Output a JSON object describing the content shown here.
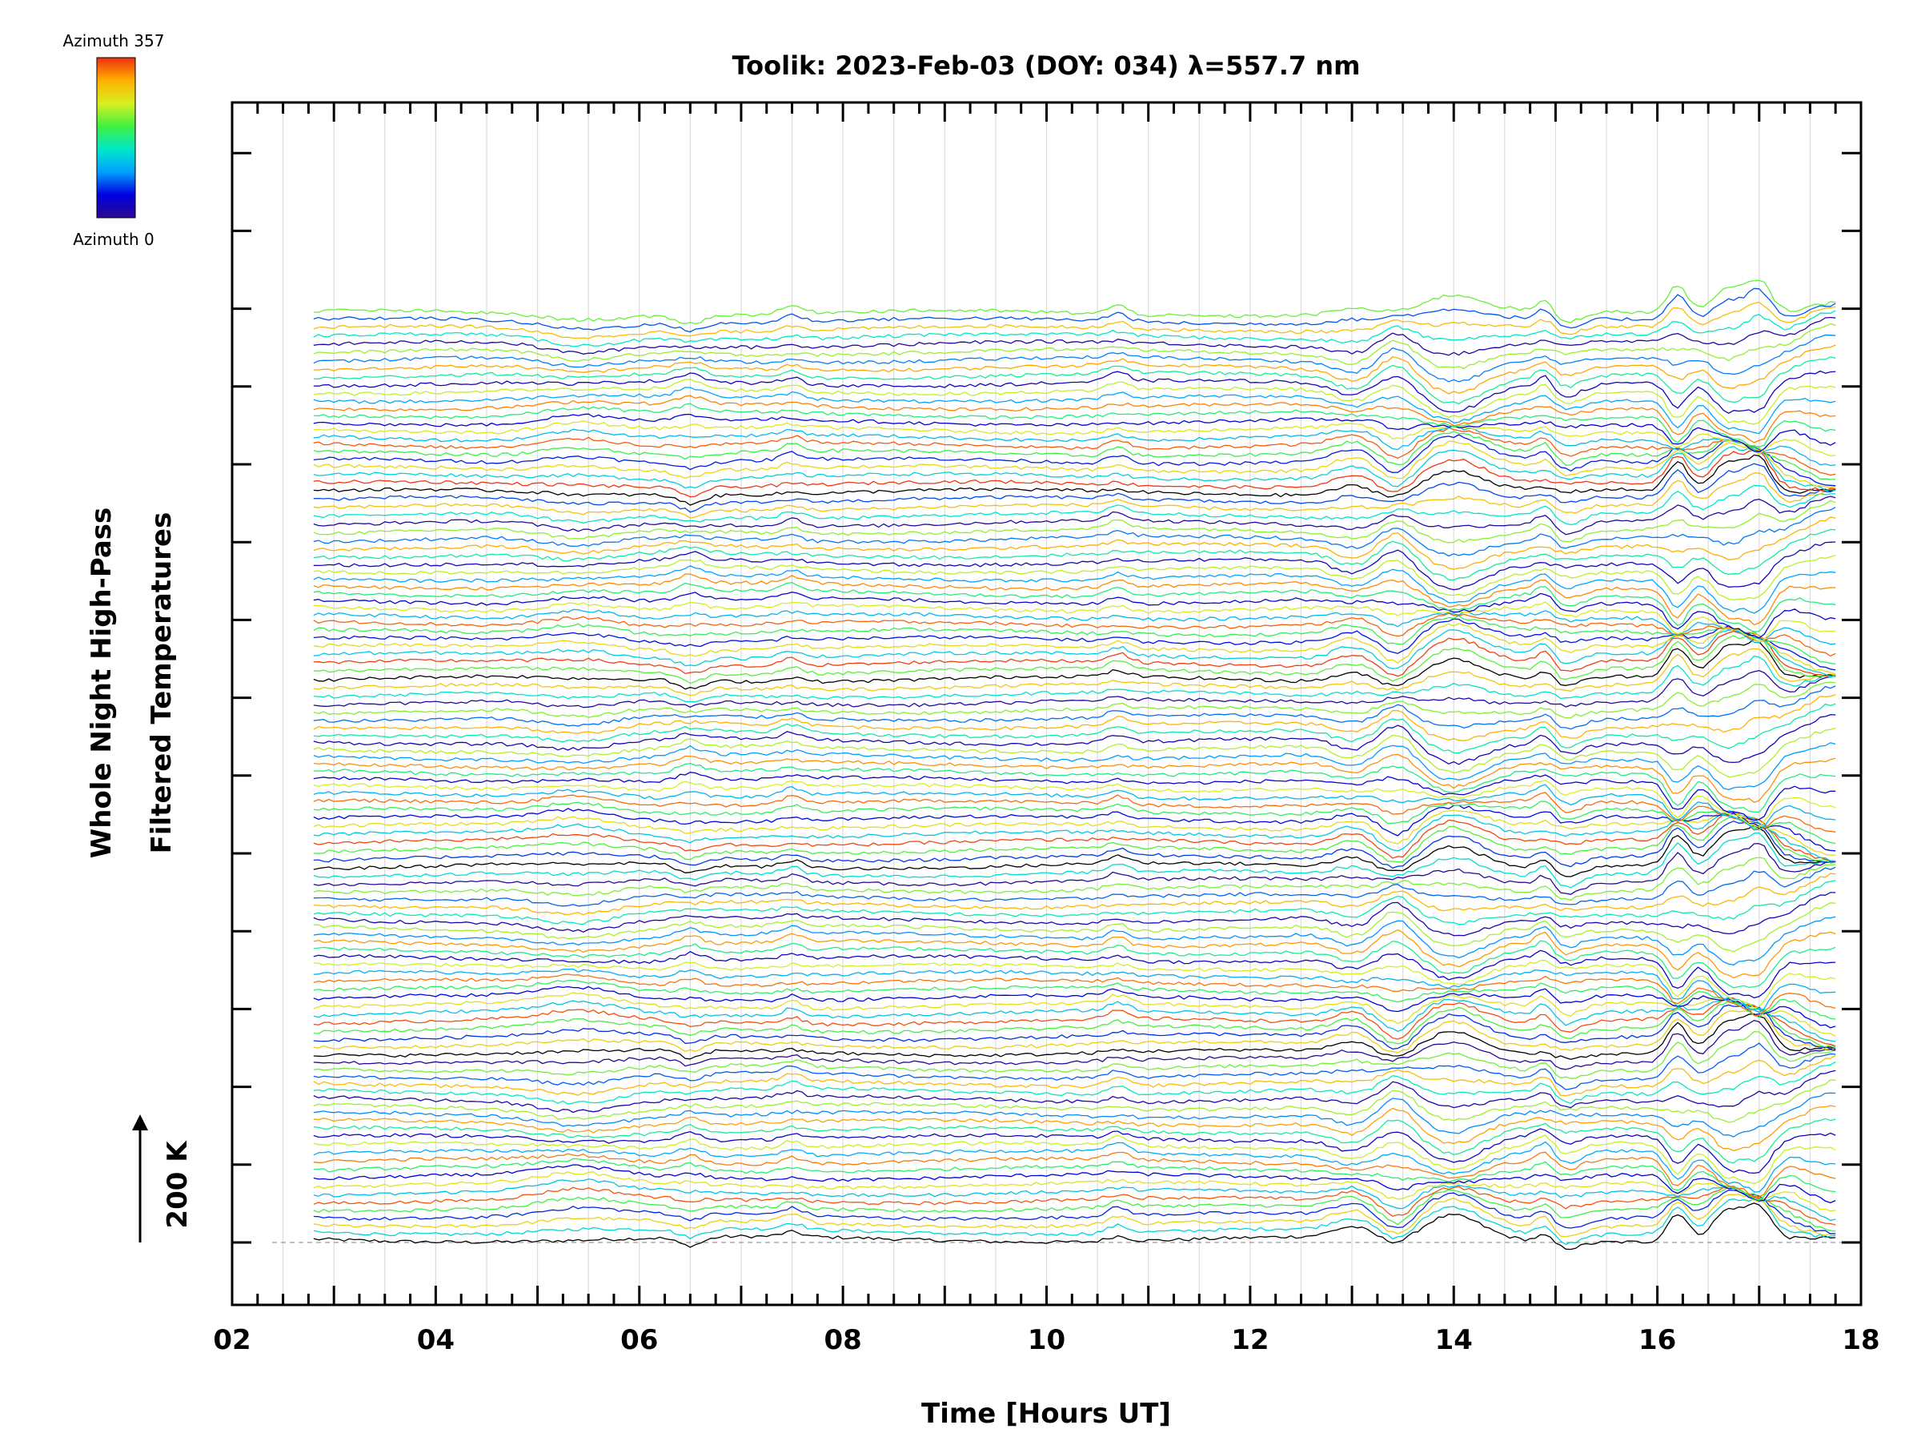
{
  "chart_data": {
    "type": "line",
    "title": "Toolik: 2023-Feb-03 (DOY: 034) λ=557.7 nm",
    "xlabel": "Time [Hours UT]",
    "ylabel": [
      "Whole Night High-Pass",
      "Filtered Temperatures"
    ],
    "scale_label": "200 K",
    "xlim": [
      2,
      18
    ],
    "x_tick_labels": [
      "02",
      "04",
      "06",
      "08",
      "10",
      "12",
      "14",
      "16",
      "18"
    ],
    "x_tick_values": [
      2,
      4,
      6,
      8,
      10,
      12,
      14,
      16,
      18
    ],
    "y_major_ticks": 15,
    "grid": true,
    "series_count": 120,
    "series_time_range": [
      2.8,
      17.75
    ],
    "azimuth_range": [
      0,
      357
    ],
    "colorbar": {
      "top_label": "Azimuth 357",
      "bottom_label": "Azimuth 0",
      "colormap": [
        "#2a0a90",
        "#0000e0",
        "#00a0ff",
        "#00e8c8",
        "#40f040",
        "#d8f020",
        "#ffb000",
        "#f03010"
      ]
    },
    "features": [
      {
        "time": 5.4,
        "note": "enhancement"
      },
      {
        "time": 6.4,
        "note": "drop"
      },
      {
        "time": 7.5,
        "note": "spike"
      },
      {
        "time": 10.7,
        "note": "spike"
      },
      {
        "time": 13.2,
        "note": "dip"
      },
      {
        "time": 14.0,
        "note": "peak"
      },
      {
        "time": 16.2,
        "note": "peak"
      },
      {
        "time": 16.7,
        "note": "peak"
      },
      {
        "time": 17.1,
        "note": "peak"
      }
    ]
  }
}
